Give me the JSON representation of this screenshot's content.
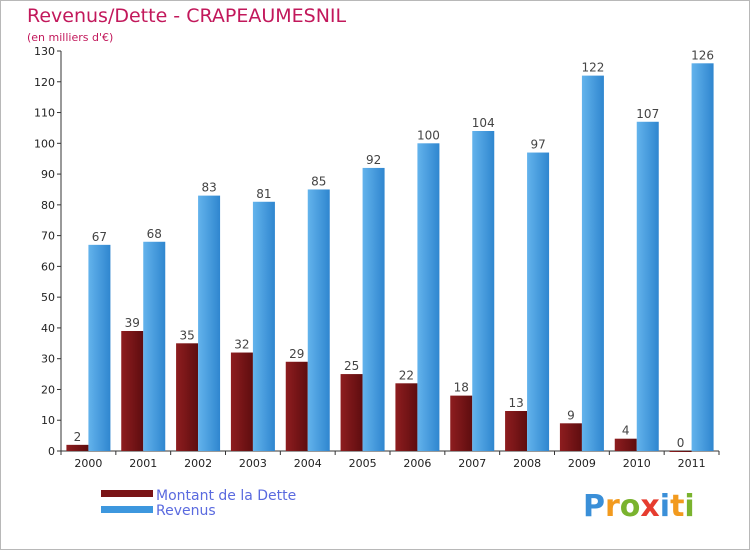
{
  "colors": {
    "debt_color": "#7a1416",
    "revenue_color": "#3d97de",
    "title_color": "#c2185b",
    "legend_text_color": "#5a6adf"
  },
  "chart_data": {
    "type": "bar",
    "title": "Revenus/Dette - CRAPEAUMESNIL",
    "subtitle": "(en milliers d'€)",
    "categories": [
      "2000",
      "2001",
      "2002",
      "2003",
      "2004",
      "2005",
      "2006",
      "2007",
      "2008",
      "2009",
      "2010",
      "2011"
    ],
    "series": [
      {
        "name": "Montant de la Dette",
        "values": [
          2,
          39,
          35,
          32,
          29,
          25,
          22,
          18,
          13,
          9,
          4,
          0
        ]
      },
      {
        "name": "Revenus",
        "values": [
          67,
          68,
          83,
          81,
          85,
          92,
          100,
          104,
          97,
          122,
          107,
          126
        ]
      }
    ],
    "ylim": [
      0,
      130
    ],
    "yticks": [
      0,
      10,
      20,
      30,
      40,
      50,
      60,
      70,
      80,
      90,
      100,
      110,
      120,
      130
    ],
    "grid": false,
    "legend_position": "bottom-left"
  },
  "logo": {
    "text": "Proxiti",
    "letters": [
      "P",
      "r",
      "o",
      "x",
      "i",
      "t",
      "i"
    ],
    "letter_colors": [
      "#3a8fd8",
      "#f29a1e",
      "#7ab32e",
      "#e63c2f",
      "#3a8fd8",
      "#f29a1e",
      "#7ab32e"
    ]
  }
}
